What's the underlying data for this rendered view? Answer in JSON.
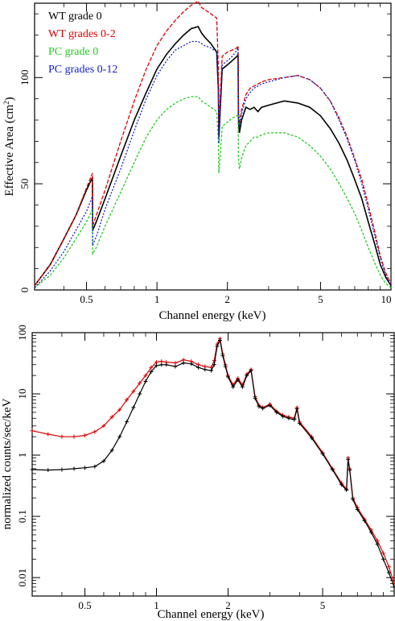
{
  "colors": {
    "black": "#000000",
    "red": "#e00000",
    "green": "#22cc22",
    "blue": "#1020d0",
    "background": "#ffffff"
  },
  "chart_data": [
    {
      "type": "line",
      "xscale": "log",
      "yscale": "linear",
      "xlim": [
        0.3,
        10
      ],
      "ylim": [
        0,
        135
      ],
      "xlabel": "Channel energy (keV)",
      "ylabel_main": "Effective Area (cm",
      "ylabel_sup": "2",
      "ylabel_end": ")",
      "x_ticks": [
        {
          "value": 0.5,
          "label": "0.5"
        },
        {
          "value": 1,
          "label": "1"
        },
        {
          "value": 2,
          "label": "2"
        },
        {
          "value": 5,
          "label": "5"
        },
        {
          "value": 10,
          "label": "10"
        }
      ],
      "y_ticks": [
        {
          "value": 0,
          "label": "0"
        },
        {
          "value": 50,
          "label": "50"
        },
        {
          "value": 100,
          "label": "100"
        }
      ],
      "legend_position": "top-left",
      "series": [
        {
          "name": "WT grade 0",
          "color": "#000000",
          "x": [
            0.3,
            0.35,
            0.4,
            0.45,
            0.5,
            0.53,
            0.531,
            0.55,
            0.6,
            0.7,
            0.8,
            0.9,
            1.0,
            1.1,
            1.2,
            1.3,
            1.4,
            1.5,
            1.55,
            1.6,
            1.7,
            1.8,
            1.83,
            1.84,
            1.9,
            2.0,
            2.1,
            2.2,
            2.22,
            2.23,
            2.25,
            2.3,
            2.4,
            2.5,
            2.6,
            2.7,
            2.8,
            3.0,
            3.5,
            4.0,
            4.5,
            5.0,
            5.5,
            6.0,
            6.5,
            7.0,
            7.5,
            8.0,
            8.5,
            9.0,
            9.5,
            10.0
          ],
          "y": [
            2,
            12,
            24,
            35,
            47,
            53,
            28,
            32,
            43,
            63,
            80,
            93,
            104,
            111,
            116,
            120,
            123,
            124,
            121,
            119,
            116,
            112,
            95,
            72,
            104,
            106,
            108,
            110,
            111,
            80,
            74,
            80,
            86,
            85,
            86,
            84,
            86,
            87,
            89,
            88,
            86,
            82,
            76,
            69,
            61,
            52,
            43,
            32,
            22,
            12,
            6,
            2
          ]
        },
        {
          "name": "WT grades 0-2",
          "color": "#e00000",
          "x": [
            0.3,
            0.35,
            0.4,
            0.45,
            0.5,
            0.53,
            0.531,
            0.55,
            0.6,
            0.7,
            0.8,
            0.9,
            1.0,
            1.1,
            1.2,
            1.3,
            1.4,
            1.5,
            1.55,
            1.6,
            1.7,
            1.8,
            1.83,
            1.84,
            1.9,
            2.0,
            2.1,
            2.2,
            2.22,
            2.23,
            2.25,
            2.3,
            2.4,
            2.5,
            2.6,
            2.7,
            2.8,
            3.0,
            3.5,
            4.0,
            4.5,
            5.0,
            5.5,
            6.0,
            6.5,
            7.0,
            7.5,
            8.0,
            8.5,
            9.0,
            9.5,
            10.0
          ],
          "y": [
            2,
            12,
            24,
            35,
            48,
            55,
            30,
            35,
            47,
            70,
            89,
            104,
            115,
            122,
            127,
            131,
            134,
            136,
            133,
            132,
            130,
            128,
            105,
            78,
            110,
            112,
            113,
            114,
            115,
            85,
            78,
            85,
            92,
            95,
            96,
            97,
            98,
            99,
            100,
            101,
            99,
            95,
            89,
            81,
            72,
            62,
            52,
            40,
            28,
            16,
            8,
            3
          ]
        },
        {
          "name": "PC grade 0",
          "color": "#22cc22",
          "x": [
            0.3,
            0.35,
            0.4,
            0.45,
            0.5,
            0.53,
            0.531,
            0.55,
            0.6,
            0.7,
            0.8,
            0.9,
            1.0,
            1.1,
            1.2,
            1.3,
            1.4,
            1.5,
            1.55,
            1.6,
            1.7,
            1.8,
            1.83,
            1.84,
            1.9,
            2.0,
            2.1,
            2.2,
            2.22,
            2.23,
            2.25,
            2.3,
            2.4,
            2.5,
            2.6,
            2.7,
            2.8,
            3.0,
            3.5,
            4.0,
            4.5,
            5.0,
            5.5,
            6.0,
            6.5,
            7.0,
            7.5,
            8.0,
            8.5,
            9.0,
            9.5,
            10.0
          ],
          "y": [
            1,
            7,
            15,
            24,
            32,
            38,
            17,
            20,
            30,
            46,
            60,
            72,
            80,
            85,
            88,
            90,
            91,
            91,
            89,
            88,
            86,
            84,
            70,
            55,
            77,
            79,
            81,
            82,
            83,
            62,
            57,
            62,
            68,
            70,
            72,
            72,
            73,
            74,
            74,
            72,
            68,
            63,
            57,
            50,
            43,
            36,
            28,
            20,
            13,
            7,
            3,
            1
          ]
        },
        {
          "name": "PC grades 0-12",
          "color": "#1020d0",
          "x": [
            0.3,
            0.35,
            0.4,
            0.45,
            0.5,
            0.53,
            0.531,
            0.55,
            0.6,
            0.7,
            0.8,
            0.9,
            1.0,
            1.1,
            1.2,
            1.3,
            1.4,
            1.5,
            1.55,
            1.6,
            1.7,
            1.8,
            1.83,
            1.84,
            1.9,
            2.0,
            2.1,
            2.2,
            2.22,
            2.23,
            2.25,
            2.3,
            2.4,
            2.5,
            2.6,
            2.7,
            2.8,
            3.0,
            3.5,
            4.0,
            4.5,
            5.0,
            5.5,
            6.0,
            6.5,
            7.0,
            7.5,
            8.0,
            8.5,
            9.0,
            9.5,
            10.0
          ],
          "y": [
            1,
            9,
            18,
            28,
            37,
            44,
            21,
            25,
            38,
            57,
            75,
            90,
            101,
            108,
            113,
            115,
            117,
            117,
            116,
            115,
            114,
            112,
            92,
            69,
            106,
            108,
            110,
            113,
            114,
            83,
            77,
            83,
            90,
            93,
            95,
            96,
            97,
            98,
            100,
            101,
            99,
            95,
            89,
            80,
            71,
            61,
            50,
            38,
            26,
            15,
            7,
            2
          ]
        }
      ]
    },
    {
      "type": "line",
      "xscale": "log",
      "yscale": "log",
      "xlim": [
        0.3,
        10
      ],
      "ylim": [
        0.005,
        100
      ],
      "xlabel": "Channel energy (keV)",
      "ylabel": "normalized counts/sec/keV",
      "x_ticks": [
        {
          "value": 0.5,
          "label": "0.5"
        },
        {
          "value": 1,
          "label": "1"
        },
        {
          "value": 2,
          "label": "2"
        },
        {
          "value": 5,
          "label": "5"
        }
      ],
      "y_ticks": [
        {
          "value": 0.01,
          "label": "0.01"
        },
        {
          "value": 0.1,
          "label": "0.1"
        },
        {
          "value": 1,
          "label": "1"
        },
        {
          "value": 10,
          "label": "10"
        },
        {
          "value": 100,
          "label": "100"
        }
      ],
      "series": [
        {
          "color": "#e00000",
          "x": [
            0.3,
            0.35,
            0.4,
            0.45,
            0.5,
            0.55,
            0.6,
            0.65,
            0.7,
            0.75,
            0.8,
            0.85,
            0.9,
            0.95,
            1.0,
            1.05,
            1.1,
            1.2,
            1.3,
            1.4,
            1.5,
            1.6,
            1.7,
            1.75,
            1.8,
            1.85,
            1.9,
            1.95,
            2.0,
            2.1,
            2.2,
            2.3,
            2.4,
            2.5,
            2.6,
            2.7,
            2.8,
            3.0,
            3.2,
            3.4,
            3.6,
            3.8,
            3.9,
            4.0,
            4.5,
            5.0,
            5.5,
            6.0,
            6.3,
            6.4,
            6.5,
            6.7,
            7.0,
            7.5,
            8.0,
            8.5,
            9.0,
            9.5,
            10.0
          ],
          "y": [
            2.5,
            2.2,
            2.0,
            2.0,
            2.1,
            2.4,
            3.0,
            4.2,
            5.5,
            8.0,
            11,
            15,
            20,
            27,
            33,
            34,
            33,
            32,
            36,
            34,
            30,
            28,
            27,
            35,
            65,
            80,
            45,
            30,
            20,
            14,
            18,
            14,
            21,
            25,
            9,
            6.5,
            6.0,
            6.8,
            5.2,
            4.5,
            4.2,
            4.0,
            6.0,
            3.5,
            2.0,
            1.1,
            0.6,
            0.35,
            0.28,
            0.9,
            0.6,
            0.2,
            0.14,
            0.09,
            0.06,
            0.04,
            0.025,
            0.015,
            0.008
          ]
        },
        {
          "color": "#000000",
          "x": [
            0.3,
            0.35,
            0.4,
            0.45,
            0.5,
            0.55,
            0.6,
            0.65,
            0.7,
            0.75,
            0.8,
            0.85,
            0.9,
            0.95,
            1.0,
            1.05,
            1.1,
            1.2,
            1.3,
            1.4,
            1.5,
            1.6,
            1.7,
            1.75,
            1.8,
            1.85,
            1.9,
            1.95,
            2.0,
            2.1,
            2.2,
            2.3,
            2.4,
            2.5,
            2.6,
            2.7,
            2.8,
            3.0,
            3.2,
            3.4,
            3.6,
            3.8,
            3.9,
            4.0,
            4.5,
            5.0,
            5.5,
            6.0,
            6.3,
            6.4,
            6.5,
            6.7,
            7.0,
            7.5,
            8.0,
            8.5,
            9.0,
            9.5,
            10.0
          ],
          "y": [
            0.58,
            0.57,
            0.58,
            0.6,
            0.62,
            0.65,
            0.8,
            1.2,
            2.0,
            3.5,
            6.0,
            10,
            16,
            23,
            29,
            30,
            30,
            28,
            32,
            31,
            27,
            25,
            24,
            30,
            60,
            75,
            42,
            28,
            19,
            13,
            17,
            13,
            20,
            24,
            8.5,
            6.2,
            5.8,
            6.5,
            5.0,
            4.3,
            4.0,
            3.8,
            5.7,
            3.3,
            1.9,
            1.05,
            0.58,
            0.33,
            0.27,
            0.85,
            0.57,
            0.19,
            0.13,
            0.085,
            0.055,
            0.035,
            0.02,
            0.012,
            0.007
          ]
        }
      ]
    }
  ]
}
